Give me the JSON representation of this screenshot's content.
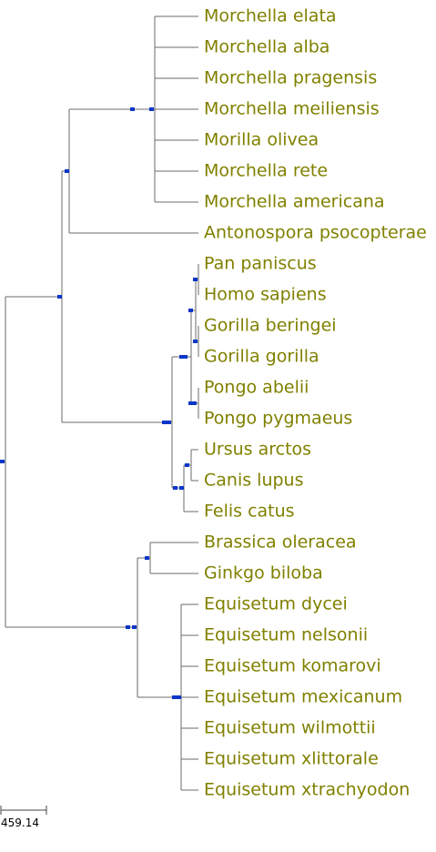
{
  "scale_bar": {
    "label": "459.14"
  },
  "colors": {
    "label": "#808000",
    "node": "#0a36c9",
    "branch": "#6b6b6b"
  },
  "leaves": [
    "Morchella elata",
    "Morchella alba",
    "Morchella pragensis",
    "Morchella meiliensis",
    "Morilla olivea",
    "Morchella rete",
    "Morchella americana",
    "Antonospora psocopterae",
    "Pan paniscus",
    "Homo sapiens",
    "Gorilla beringei",
    "Gorilla gorilla",
    "Pongo abelii",
    "Pongo pygmaeus",
    "Ursus arctos",
    "Canis lupus",
    "Felis catus",
    "Brassica oleracea",
    "Ginkgo biloba",
    "Equisetum dycei",
    "Equisetum nelsonii",
    "Equisetum komarovi",
    "Equisetum mexicanum",
    "Equisetum wilmottii",
    "Equisetum xlittorale",
    "Equisetum xtrachyodon"
  ]
}
